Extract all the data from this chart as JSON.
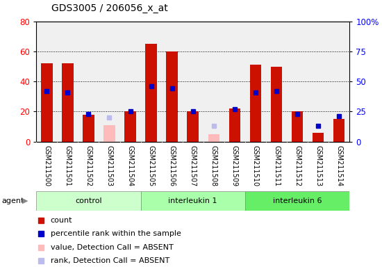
{
  "title": "GDS3005 / 206056_x_at",
  "samples": [
    "GSM211500",
    "GSM211501",
    "GSM211502",
    "GSM211503",
    "GSM211504",
    "GSM211505",
    "GSM211506",
    "GSM211507",
    "GSM211508",
    "GSM211509",
    "GSM211510",
    "GSM211511",
    "GSM211512",
    "GSM211513",
    "GSM211514"
  ],
  "absent": [
    false,
    false,
    false,
    true,
    false,
    false,
    false,
    false,
    true,
    false,
    false,
    false,
    false,
    false,
    false
  ],
  "count_values": [
    52,
    52,
    18,
    11,
    20,
    65,
    60,
    20,
    5,
    22,
    51,
    50,
    20,
    6,
    15
  ],
  "rank_values": [
    42,
    41,
    23,
    20,
    25,
    46,
    44,
    25,
    13,
    27,
    41,
    42,
    23,
    13,
    21
  ],
  "groups": [
    {
      "label": "control",
      "start": 0,
      "end": 4,
      "color": "#ccffcc"
    },
    {
      "label": "interleukin 1",
      "start": 5,
      "end": 9,
      "color": "#aaffaa"
    },
    {
      "label": "interleukin 6",
      "start": 10,
      "end": 14,
      "color": "#66ee66"
    }
  ],
  "ylim_left": [
    0,
    80
  ],
  "ylim_right": [
    0,
    100
  ],
  "yticks_left": [
    0,
    20,
    40,
    60,
    80
  ],
  "yticks_right": [
    0,
    25,
    50,
    75,
    100
  ],
  "bar_color": "#cc1100",
  "bar_color_absent": "#ffbbbb",
  "rank_color": "#0000cc",
  "rank_color_absent": "#bbbbee",
  "bar_width": 0.55,
  "agent_label": "agent",
  "legend_labels": [
    "count",
    "percentile rank within the sample",
    "value, Detection Call = ABSENT",
    "rank, Detection Call = ABSENT"
  ]
}
